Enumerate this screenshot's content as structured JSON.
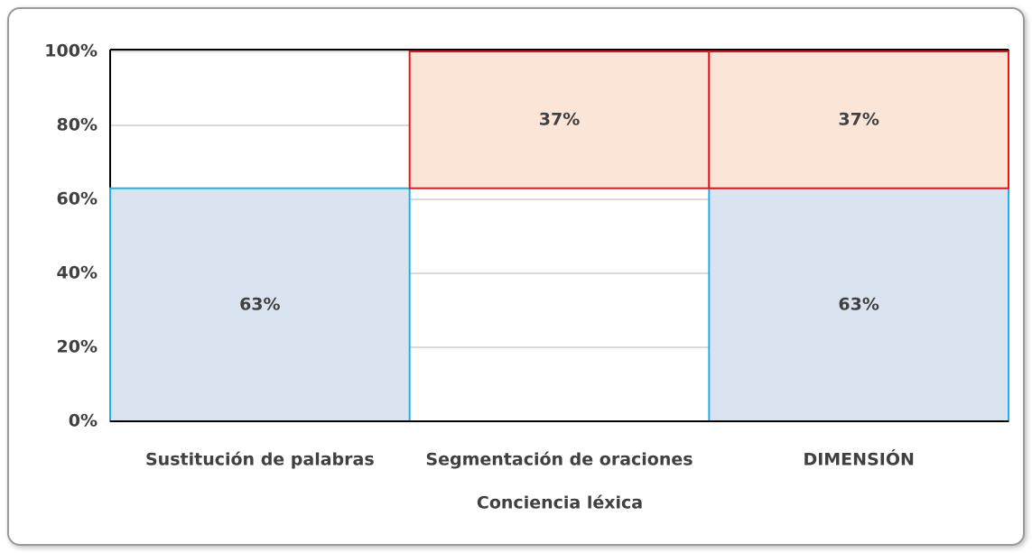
{
  "chart_data": {
    "type": "bar",
    "stacked": true,
    "x_label": "Conciencia léxica",
    "categories": [
      "Sustitución de palabras",
      "Segmentación de oraciones",
      "DIMENSIÓN"
    ],
    "series": [
      {
        "color": "#dae3f0",
        "edge_color": "#1fb0e8",
        "values": [
          63,
          null,
          63
        ],
        "value_labels": [
          "63%",
          null,
          "63%"
        ]
      },
      {
        "color": "#fbe5d6",
        "edge_color": "#e8141c",
        "values": [
          null,
          37,
          37
        ],
        "value_labels": [
          null,
          "37%",
          "37%"
        ]
      }
    ],
    "ylim": [
      0,
      100
    ],
    "yticks": [
      {
        "value": 0,
        "label": "0%"
      },
      {
        "value": 20,
        "label": "20%"
      },
      {
        "value": 40,
        "label": "40%"
      },
      {
        "value": 60,
        "label": "60%"
      },
      {
        "value": 80,
        "label": "80%"
      },
      {
        "value": 100,
        "label": "100%"
      }
    ],
    "grid": true
  }
}
